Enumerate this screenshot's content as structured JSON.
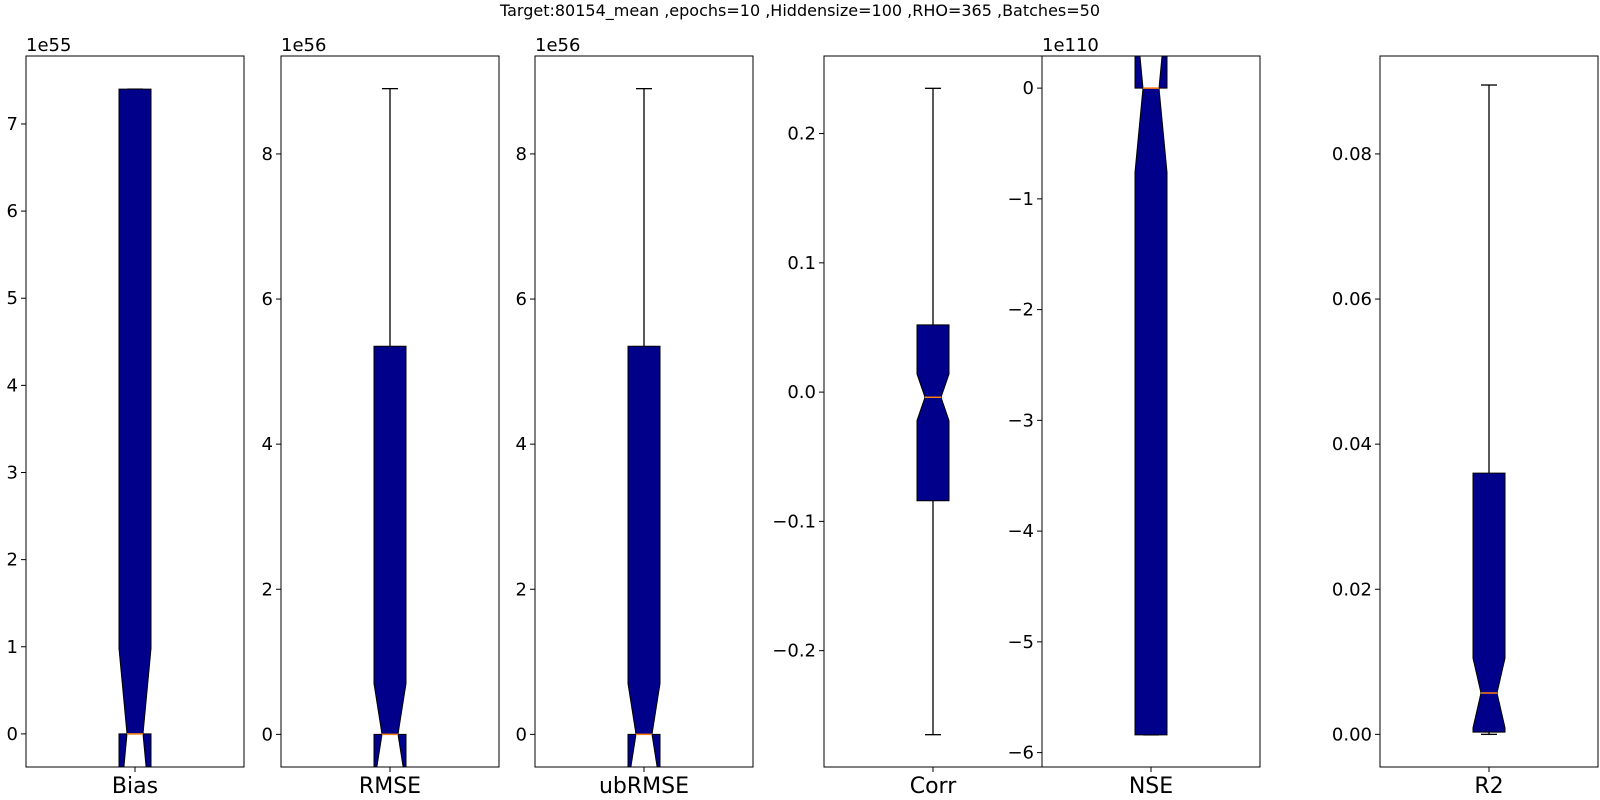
{
  "figure": {
    "title": "Target:80154_mean ,epochs=10 ,Hiddensize=100 ,RHO=365 ,Batches=50"
  },
  "colors": {
    "box_fill": "#00008b",
    "median": "#ff7f0e",
    "line": "#000000"
  },
  "chart_data": [
    {
      "type": "boxplot",
      "notch": true,
      "xlabel": "Bias",
      "exponent": "1e55",
      "ylim": [
        -0.38,
        7.78
      ],
      "yticks": [
        0,
        1,
        2,
        3,
        4,
        5,
        6,
        7
      ],
      "ytick_labels": [
        "0",
        "1",
        "2",
        "3",
        "4",
        "5",
        "6",
        "7"
      ],
      "stats": {
        "whislo": 0.0,
        "q1": 0.0,
        "median": 0.0,
        "q3": 7.4,
        "whishi": 7.4,
        "notch_lo": -0.98,
        "notch_hi": 0.98
      }
    },
    {
      "type": "boxplot",
      "notch": true,
      "xlabel": "RMSE",
      "exponent": "1e56",
      "ylim": [
        -0.45,
        9.35
      ],
      "yticks": [
        0,
        2,
        4,
        6,
        8
      ],
      "ytick_labels": [
        "0",
        "2",
        "4",
        "6",
        "8"
      ],
      "stats": {
        "whislo": 0.0,
        "q1": 0.0,
        "median": 0.0,
        "q3": 5.35,
        "whishi": 8.9,
        "notch_lo": -0.7,
        "notch_hi": 0.7
      }
    },
    {
      "type": "boxplot",
      "notch": true,
      "xlabel": "ubRMSE",
      "exponent": "1e56",
      "ylim": [
        -0.45,
        9.35
      ],
      "yticks": [
        0,
        2,
        4,
        6,
        8
      ],
      "ytick_labels": [
        "0",
        "2",
        "4",
        "6",
        "8"
      ],
      "stats": {
        "whislo": 0.0,
        "q1": 0.0,
        "median": 0.0,
        "q3": 5.35,
        "whishi": 8.9,
        "notch_lo": -0.7,
        "notch_hi": 0.7
      }
    },
    {
      "type": "boxplot",
      "notch": true,
      "xlabel": "Corr",
      "exponent": "",
      "ylim": [
        -0.29,
        0.26
      ],
      "yticks": [
        -0.2,
        -0.1,
        0.0,
        0.1,
        0.2
      ],
      "ytick_labels": [
        "−0.2",
        "−0.1",
        "0.0",
        "0.1",
        "0.2"
      ],
      "stats": {
        "whislo": -0.265,
        "q1": -0.084,
        "median": -0.004,
        "q3": 0.052,
        "whishi": 0.235,
        "notch_lo": -0.022,
        "notch_hi": 0.014
      }
    },
    {
      "type": "boxplot",
      "notch": true,
      "xlabel": "NSE",
      "exponent": "1e110",
      "ylim": [
        -6.13,
        0.29
      ],
      "yticks": [
        -6,
        -5,
        -4,
        -3,
        -2,
        -1,
        0
      ],
      "ytick_labels": [
        "−6",
        "−5",
        "−4",
        "−3",
        "−2",
        "−1",
        "0"
      ],
      "stats": {
        "whislo": -5.84,
        "q1": -5.84,
        "median": 0.0,
        "q3": 0.0,
        "whishi": 0.0,
        "notch_lo": -0.76,
        "notch_hi": 0.76
      }
    },
    {
      "type": "boxplot",
      "notch": true,
      "xlabel": "R2",
      "exponent": "",
      "ylim": [
        -0.0045,
        0.0935
      ],
      "yticks": [
        0.0,
        0.02,
        0.04,
        0.06,
        0.08
      ],
      "ytick_labels": [
        "0.00",
        "0.02",
        "0.04",
        "0.06",
        "0.08"
      ],
      "stats": {
        "whislo": 0.0,
        "q1": 0.0003,
        "median": 0.0057,
        "q3": 0.036,
        "whishi": 0.0895,
        "notch_lo": 0.0009,
        "notch_hi": 0.0105
      }
    }
  ]
}
